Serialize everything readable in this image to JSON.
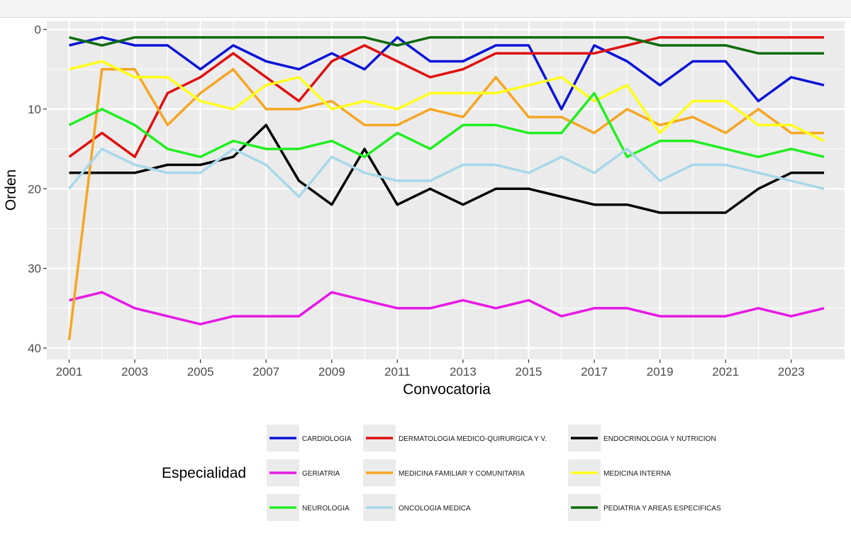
{
  "chart_data": {
    "type": "line",
    "title": "",
    "xlabel": "Convocatoria",
    "ylabel": "Orden",
    "legend_title": "Especialidad",
    "legend_position": "bottom",
    "xlim": [
      2001,
      2024
    ],
    "ylim": [
      41,
      -0.5
    ],
    "y_reversed": true,
    "x_ticks": [
      2001,
      2003,
      2005,
      2007,
      2009,
      2011,
      2013,
      2015,
      2017,
      2019,
      2021,
      2023
    ],
    "y_ticks": [
      0,
      10,
      20,
      30,
      40
    ],
    "x": [
      2001,
      2002,
      2003,
      2004,
      2005,
      2006,
      2007,
      2008,
      2009,
      2010,
      2011,
      2012,
      2013,
      2014,
      2015,
      2016,
      2017,
      2018,
      2019,
      2020,
      2021,
      2022,
      2023,
      2024
    ],
    "series": [
      {
        "name": "CARDIOLOGIA",
        "color": "#0a14d8",
        "values": [
          2,
          1,
          2,
          2,
          5,
          2,
          4,
          5,
          3,
          5,
          1,
          4,
          4,
          2,
          2,
          10,
          2,
          4,
          7,
          4,
          4,
          9,
          6,
          7
        ]
      },
      {
        "name": "DERMATOLOGIA MEDICO-QUIRURGICA Y V.",
        "color": "#e01010",
        "values": [
          16,
          13,
          16,
          8,
          6,
          3,
          6,
          9,
          4,
          2,
          4,
          6,
          5,
          3,
          3,
          3,
          3,
          2,
          1,
          1,
          1,
          1,
          1,
          1
        ]
      },
      {
        "name": "ENDOCRINOLOGIA Y NUTRICION",
        "color": "#000000",
        "values": [
          18,
          18,
          18,
          17,
          17,
          16,
          12,
          19,
          22,
          15,
          22,
          20,
          22,
          20,
          20,
          21,
          22,
          22,
          23,
          23,
          23,
          20,
          18,
          18
        ]
      },
      {
        "name": "GERIATRIA",
        "color": "#e619e6",
        "values": [
          34,
          33,
          35,
          36,
          37,
          36,
          36,
          36,
          33,
          34,
          35,
          35,
          34,
          35,
          34,
          36,
          35,
          35,
          36,
          36,
          36,
          35,
          36,
          35
        ]
      },
      {
        "name": "MEDICINA FAMILIAR Y COMUNITARIA",
        "color": "#f5a623",
        "values": [
          39,
          5,
          5,
          12,
          8,
          5,
          10,
          10,
          9,
          12,
          12,
          10,
          11,
          6,
          11,
          11,
          13,
          10,
          12,
          11,
          13,
          10,
          13,
          13
        ]
      },
      {
        "name": "MEDICINA INTERNA",
        "color": "#ffff1a",
        "values": [
          5,
          4,
          6,
          6,
          9,
          10,
          7,
          6,
          10,
          9,
          10,
          8,
          8,
          8,
          7,
          6,
          9,
          7,
          13,
          9,
          9,
          12,
          12,
          14
        ]
      },
      {
        "name": "NEUROLOGIA",
        "color": "#22ee22",
        "values": [
          12,
          10,
          12,
          15,
          16,
          14,
          15,
          15,
          14,
          16,
          13,
          15,
          12,
          12,
          13,
          13,
          8,
          16,
          14,
          14,
          15,
          16,
          15,
          16
        ]
      },
      {
        "name": "ONCOLOGIA MEDICA",
        "color": "#a8d8e8",
        "values": [
          20,
          15,
          17,
          18,
          18,
          15,
          17,
          21,
          16,
          18,
          19,
          19,
          17,
          17,
          18,
          16,
          18,
          15,
          19,
          17,
          17,
          18,
          19,
          20
        ]
      },
      {
        "name": "PEDIATRIA Y AREAS ESPECIFICAS",
        "color": "#0f6b0f",
        "values": [
          1,
          2,
          1,
          1,
          1,
          1,
          1,
          1,
          1,
          1,
          2,
          1,
          1,
          1,
          1,
          1,
          1,
          1,
          2,
          2,
          2,
          3,
          3,
          3
        ]
      }
    ]
  }
}
